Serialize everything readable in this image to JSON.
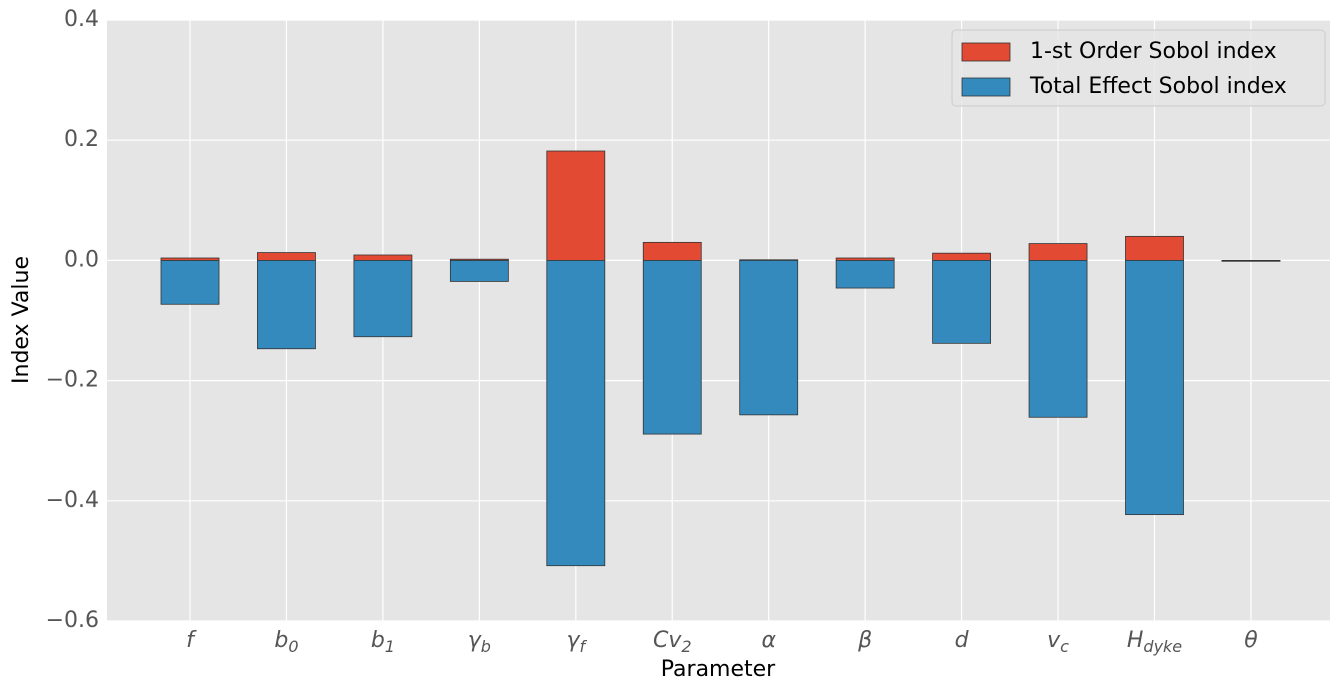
{
  "chart_data": {
    "type": "bar",
    "x_label": "Parameter",
    "y_label": "Index Value",
    "categories": [
      "f",
      "b0",
      "b1",
      "γb",
      "γf",
      "Cv2",
      "α",
      "β",
      "d",
      "vc",
      "Hdyke",
      "θ"
    ],
    "series": [
      {
        "name": "1-st Order Sobol index",
        "color": "#E24A33",
        "values": [
          0.004,
          0.013,
          0.009,
          0.002,
          0.182,
          0.03,
          0.001,
          0.004,
          0.012,
          0.028,
          0.04,
          0.0
        ]
      },
      {
        "name": "Total Effect Sobol index",
        "color": "#348ABD",
        "values": [
          -0.073,
          -0.147,
          -0.127,
          -0.035,
          -0.508,
          -0.289,
          -0.257,
          -0.046,
          -0.138,
          -0.261,
          -0.423,
          -0.001
        ]
      }
    ],
    "ylim": [
      -0.6,
      0.4
    ],
    "yticks": [
      {
        "value": -0.6,
        "label": "−0.6"
      },
      {
        "value": -0.4,
        "label": "−0.4"
      },
      {
        "value": -0.2,
        "label": "−0.2"
      },
      {
        "value": 0,
        "label": "0.0"
      },
      0.2,
      0.4
    ],
    "grid": true,
    "legend": "upper right"
  }
}
